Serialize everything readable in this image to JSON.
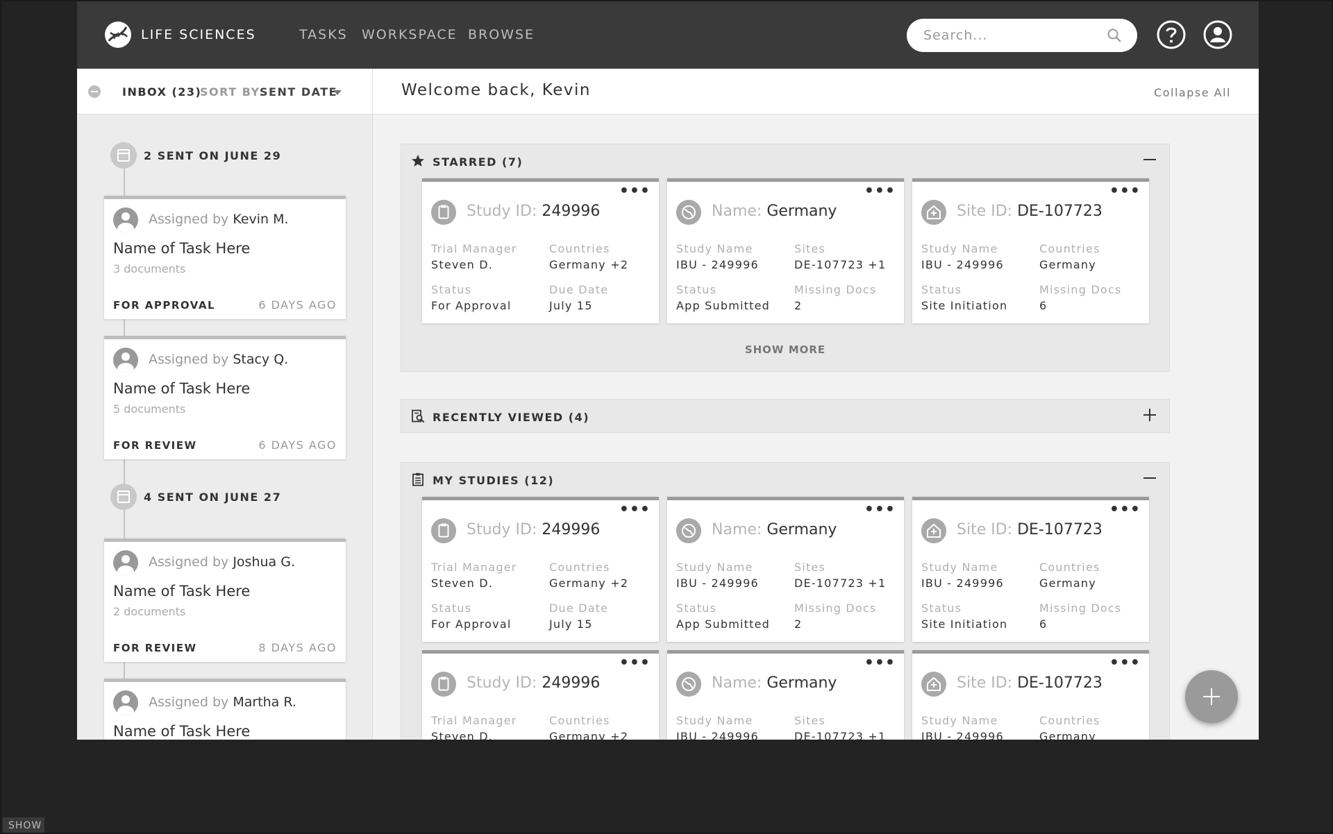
{
  "header": {
    "brand": "LIFE SCIENCES",
    "nav": [
      "TASKS",
      "WORKSPACE",
      "BROWSE"
    ],
    "search_placeholder": "Search..."
  },
  "inbox": {
    "label": "INBOX (23)",
    "sort_label": "SORT BY:",
    "sort_value": "SENT DATE"
  },
  "welcome": {
    "title": "Welcome back, Kevin",
    "collapse_all": "Collapse All"
  },
  "timeline": {
    "groups": [
      {
        "date_label": "2 SENT ON JUNE 29"
      },
      {
        "date_label": "4 SENT ON JUNE 27"
      }
    ],
    "tasks": [
      {
        "assigned_prefix": "Assigned by",
        "assigner": "Kevin M.",
        "name": "Name of Task Here",
        "docs": "3 documents",
        "type": "FOR APPROVAL",
        "ago": "6 DAYS AGO"
      },
      {
        "assigned_prefix": "Assigned by",
        "assigner": "Stacy Q.",
        "name": "Name of Task Here",
        "docs": "5 documents",
        "type": "FOR REVIEW",
        "ago": "6 DAYS AGO"
      },
      {
        "assigned_prefix": "Assigned by",
        "assigner": "Joshua G.",
        "name": "Name of Task Here",
        "docs": "2 documents",
        "type": "FOR REVIEW",
        "ago": "8 DAYS AGO"
      },
      {
        "assigned_prefix": "Assigned by",
        "assigner": "Martha R.",
        "name": "Name of Task Here"
      }
    ]
  },
  "sections": {
    "starred": {
      "title": "STARRED (7)",
      "show_more": "SHOW MORE"
    },
    "recent": {
      "title": "RECENTLY VIEWED (4)"
    },
    "studies": {
      "title": "MY STUDIES (12)"
    }
  },
  "cards": {
    "study": {
      "id_label": "Study ID:",
      "id_value": "249996",
      "f1_label": "Trial Manager",
      "f1_value": "Steven D.",
      "f2_label": "Countries",
      "f2_value": "Germany +2",
      "f3_label": "Status",
      "f3_value": "For Approval",
      "f4_label": "Due Date",
      "f4_value": "July 15"
    },
    "country": {
      "id_label": "Name:",
      "id_value": "Germany",
      "f1_label": "Study Name",
      "f1_value": "IBU - 249996",
      "f2_label": "Sites",
      "f2_value": "DE-107723 +1",
      "f3_label": "Status",
      "f3_value": "App Submitted",
      "f4_label": "Missing Docs",
      "f4_value": "2"
    },
    "site": {
      "id_label": "Site ID:",
      "id_value": "DE-107723",
      "f1_label": "Study Name",
      "f1_value": "IBU - 249996",
      "f2_label": "Countries",
      "f2_value": "Germany",
      "f3_label": "Status",
      "f3_value": "Site Initiation",
      "f4_label": "Missing Docs",
      "f4_value": "6"
    }
  },
  "bottom": {
    "show": "SHOW"
  }
}
